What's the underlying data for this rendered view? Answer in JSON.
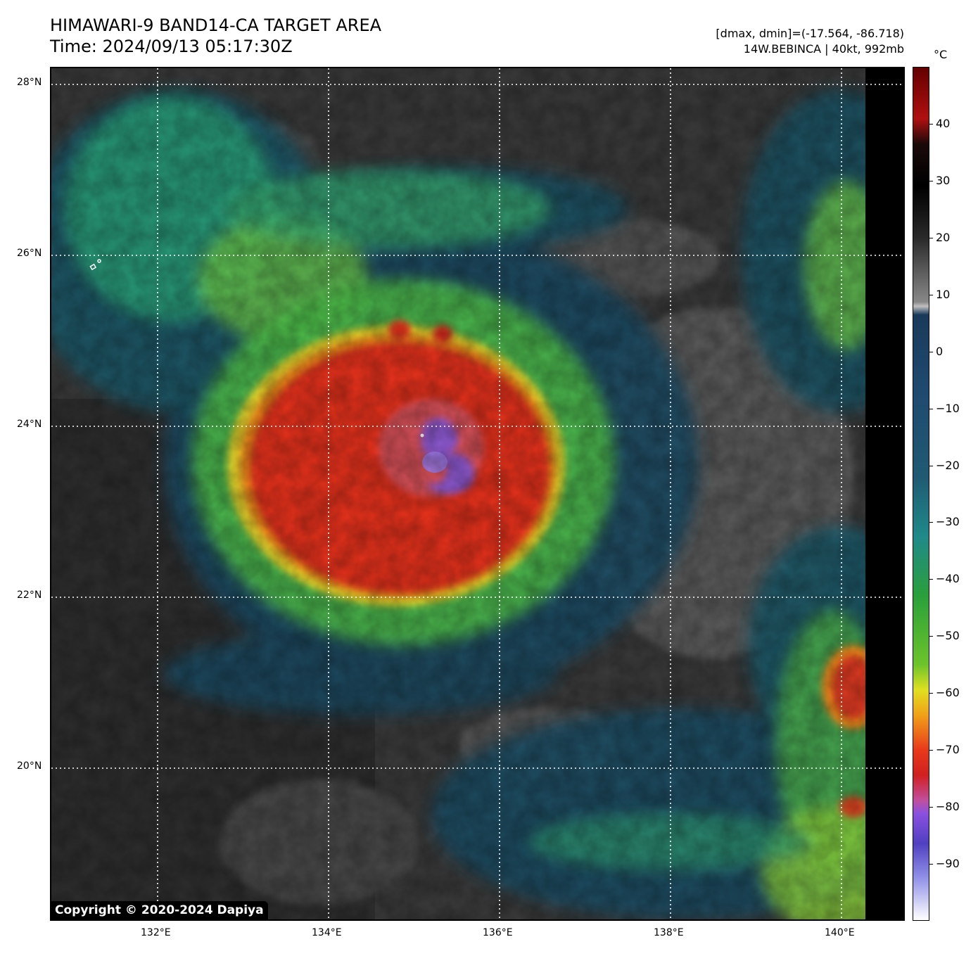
{
  "header": {
    "title_line1": "HIMAWARI-9 BAND14-CA TARGET AREA",
    "title_line2": "Time: 2024/09/13 05:17:30Z",
    "info_line1": "[dmax, dmin]=(-17.564, -86.718)",
    "info_line2": "14W.BEBINCA | 40kt, 992mb"
  },
  "map": {
    "lat_labels": [
      "28°N",
      "26°N",
      "24°N",
      "22°N",
      "20°N"
    ],
    "lon_labels": [
      "132°E",
      "134°E",
      "136°E",
      "138°E",
      "140°E"
    ],
    "copyright": "Copyright © 2020-2024 Dapiya",
    "storm_center": {
      "lat": 23.9,
      "lon": 135.2
    }
  },
  "colorbar": {
    "unit": "°C",
    "tick_labels": [
      "40",
      "30",
      "20",
      "10",
      "0",
      "−10",
      "−20",
      "−30",
      "−40",
      "−50",
      "−60",
      "−70",
      "−80",
      "−90"
    ],
    "tick_values": [
      40,
      30,
      20,
      10,
      0,
      -10,
      -20,
      -30,
      -40,
      -50,
      -60,
      -70,
      -80,
      -90
    ],
    "range": [
      -100,
      50
    ]
  },
  "colors": {
    "clear_sky": "#3d3d3d",
    "warm_cloud": "#1f4e66",
    "cold_cloud": "#2aa37a",
    "very_cold": "#e8301e",
    "coldest_core": "#9a6ee0"
  }
}
